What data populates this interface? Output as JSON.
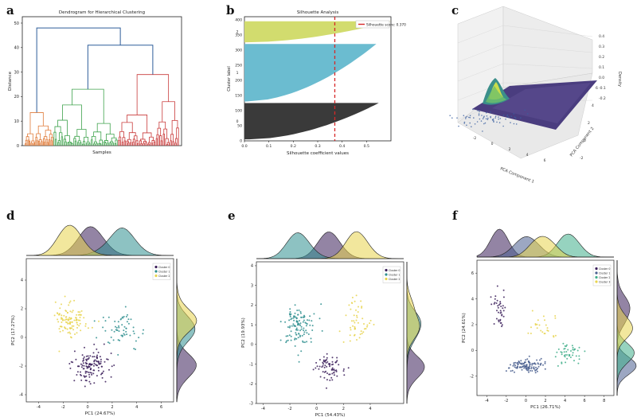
{
  "figure": {
    "panel_labels": [
      "a",
      "b",
      "c",
      "d",
      "e",
      "f"
    ]
  },
  "chart_data": [
    {
      "panel": "a",
      "type": "dendrogram",
      "title": "Dendrogram for Hierarchical Clustering",
      "xlabel": "Samples",
      "ylabel": "Distance",
      "ylim": [
        0,
        50
      ],
      "yticks": [
        0,
        10,
        20,
        30,
        40,
        50
      ],
      "colors": {
        "cluster_1": "#e07b39",
        "cluster_2": "#3fa34d",
        "cluster_3": "#c93a3a",
        "links": "#2e5e9a"
      },
      "merges": {
        "root": 48,
        "clusters_2_3": 41,
        "cluster_1": 13.5,
        "cluster_2": 23,
        "cluster_3": 29
      }
    },
    {
      "panel": "b",
      "type": "silhouette",
      "title": "Silhouette Analysis",
      "xlabel": "Silhouette coefficient values",
      "ylabel": "Cluster label",
      "xlim": [
        0,
        0.6
      ],
      "ylim": [
        0,
        410
      ],
      "xticks": [
        "0.0",
        "0.1",
        "0.2",
        "0.3",
        "0.4",
        "0.5"
      ],
      "yticks": [
        0,
        50,
        100,
        150,
        200,
        250,
        300,
        350,
        400
      ],
      "cluster_labels": [
        "0",
        "1",
        "2"
      ],
      "clusters": [
        {
          "label": "0",
          "y_start": 5,
          "y_end": 125,
          "max": 0.55,
          "min": 0.02,
          "color": "#3a3a3a"
        },
        {
          "label": "1",
          "y_start": 130,
          "y_end": 320,
          "max": 0.54,
          "min": 0.01,
          "color": "#6bbcd0"
        },
        {
          "label": "2",
          "y_start": 325,
          "y_end": 395,
          "max": 0.6,
          "min": 0.0,
          "color": "#d2dc6e"
        }
      ],
      "silhouette_score": 0.37,
      "legend": "Silhouette score: 0.370"
    },
    {
      "panel": "c",
      "type": "surface3d",
      "xlabel": "PCA Component 1",
      "ylabel": "PCA Component 2",
      "zlabel": "Density",
      "zticks": [
        "0.4",
        "0.3",
        "0.2",
        "0.1",
        "0.0",
        "-0.1",
        "-0.2"
      ],
      "xticks": [
        "-2",
        "0",
        "2",
        "4",
        "6"
      ],
      "yticks": [
        "-2",
        "0",
        "2",
        "4",
        "6"
      ]
    },
    {
      "panel": "d",
      "type": "scatter",
      "xlabel": "PC1 (24.67%)",
      "ylabel": "PC2 (17.27%)",
      "xlim": [
        -5,
        7
      ],
      "ylim": [
        -4.5,
        5.5
      ],
      "xticks": [
        -4,
        -2,
        0,
        2,
        4,
        6
      ],
      "yticks": [
        -4,
        -2,
        0,
        2,
        4
      ],
      "legend": [
        "Cluster 0",
        "Cluster 1",
        "Cluster 2"
      ],
      "series": [
        {
          "name": "Cluster 0",
          "color": "#3b1f5a",
          "cx": 0.3,
          "cy": -1.9,
          "sx": 1.1,
          "sy": 0.9,
          "n": 130
        },
        {
          "name": "Cluster 1",
          "color": "#2f8f8f",
          "cx": 2.8,
          "cy": 0.5,
          "sx": 1.2,
          "sy": 1.3,
          "n": 60
        },
        {
          "name": "Cluster 2",
          "color": "#e8d44d",
          "cx": -1.4,
          "cy": 1.2,
          "sx": 1.1,
          "sy": 1.0,
          "n": 110
        }
      ]
    },
    {
      "panel": "e",
      "type": "scatter",
      "xlabel": "PC1 (54.43%)",
      "ylabel": "PC2 (19.93%)",
      "xlim": [
        -4.5,
        6.5
      ],
      "ylim": [
        -3,
        4.2
      ],
      "xticks": [
        -4,
        -2,
        0,
        2,
        4
      ],
      "yticks": [
        -3,
        -2,
        -1,
        0,
        1,
        2,
        3,
        4
      ],
      "legend": [
        "Cluster 0",
        "Cluster 1",
        "Cluster 2"
      ],
      "series": [
        {
          "name": "Cluster 0",
          "color": "#3b1f5a",
          "cx": 0.9,
          "cy": -1.2,
          "sx": 0.9,
          "sy": 0.6,
          "n": 70
        },
        {
          "name": "Cluster 1",
          "color": "#2f8f8f",
          "cx": -1.3,
          "cy": 0.9,
          "sx": 0.9,
          "sy": 1.0,
          "n": 120
        },
        {
          "name": "Cluster 2",
          "color": "#e8d44d",
          "cx": 3.0,
          "cy": 1.0,
          "sx": 0.8,
          "sy": 0.8,
          "n": 50
        }
      ]
    },
    {
      "panel": "f",
      "type": "scatter",
      "xlabel": "PC1 (26.71%)",
      "ylabel": "PC2 (24.61%)",
      "xlim": [
        -5,
        9
      ],
      "ylim": [
        -3.5,
        7
      ],
      "xticks": [
        -4,
        -2,
        0,
        2,
        4,
        6,
        8
      ],
      "yticks": [
        -2,
        0,
        2,
        4,
        6
      ],
      "legend": [
        "Cluster 0",
        "Cluster 1",
        "Cluster 2",
        "Cluster 3"
      ],
      "series": [
        {
          "name": "Cluster 0",
          "color": "#3b1f5a",
          "cx": -2.7,
          "cy": 3.2,
          "sx": 0.5,
          "sy": 1.4,
          "n": 40
        },
        {
          "name": "Cluster 1",
          "color": "#4a5f8f",
          "cx": 0.1,
          "cy": -1.2,
          "sx": 1.5,
          "sy": 0.4,
          "n": 110
        },
        {
          "name": "Cluster 2",
          "color": "#3fae8a",
          "cx": 4.4,
          "cy": -0.2,
          "sx": 1.1,
          "sy": 0.8,
          "n": 45
        },
        {
          "name": "Cluster 3",
          "color": "#e8d44d",
          "cx": 1.8,
          "cy": 1.8,
          "sx": 1.6,
          "sy": 1.4,
          "n": 25
        }
      ]
    }
  ]
}
